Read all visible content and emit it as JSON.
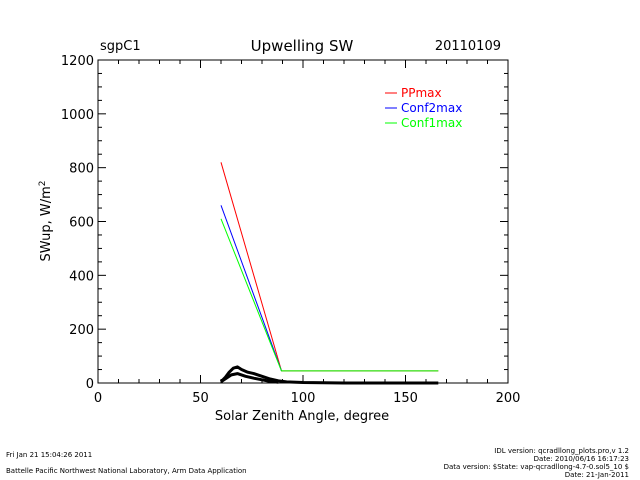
{
  "chart_data": {
    "type": "line",
    "title": "Upwelling SW",
    "site": "sgpC1",
    "date": "20110109",
    "xlabel": "Solar Zenith Angle, degree",
    "ylabel": "SWup, W/m",
    "ylabel_superscript": "2",
    "xlim": [
      0,
      200
    ],
    "ylim": [
      0,
      1200
    ],
    "xticks": [
      "0",
      "50",
      "100",
      "150",
      "200"
    ],
    "yticks": [
      "0",
      "200",
      "400",
      "600",
      "800",
      "1000",
      "1200"
    ],
    "legend_placement": "top-right",
    "series": [
      {
        "name": "PPmax",
        "color": "#ff0000",
        "x": [
          60,
          89.5,
          166
        ],
        "y": [
          820,
          45,
          45
        ]
      },
      {
        "name": "Conf2max",
        "color": "#0000ff",
        "x": [
          60,
          89.5
        ],
        "y": [
          660,
          45
        ]
      },
      {
        "name": "Conf1max",
        "color": "#00ff00",
        "x": [
          60,
          89.5,
          166
        ],
        "y": [
          610,
          45,
          45
        ]
      },
      {
        "name": "",
        "color": "#000000",
        "thick": true,
        "x": [
          60,
          62,
          64,
          66,
          68,
          70,
          73,
          76,
          80,
          84,
          88,
          92,
          100,
          110,
          120,
          130,
          140,
          150,
          160,
          166
        ],
        "y": [
          5,
          20,
          40,
          55,
          60,
          50,
          40,
          35,
          25,
          15,
          8,
          4,
          2,
          1,
          0,
          0,
          0,
          0,
          0,
          0
        ]
      },
      {
        "name": "",
        "color": "#000000",
        "thick": true,
        "x": [
          60,
          62,
          65,
          68,
          72,
          76,
          80,
          84,
          88
        ],
        "y": [
          5,
          15,
          30,
          35,
          25,
          18,
          12,
          6,
          3
        ]
      }
    ]
  },
  "footer": {
    "timestamp": "Fri Jan 21 15:04:26 2011",
    "institution": "Battelle Pacific Northwest National Laboratory, Arm Data Application",
    "idl_version": "IDL version: qcradllong_plots.pro,v 1.2",
    "date_line": "Date: 2010/06/16 16:17:23",
    "data_version": "Data version: $State: vap-qcradllong-4.7-0.sol5_10 $",
    "data_date": "Date: 21-Jan-2011"
  }
}
